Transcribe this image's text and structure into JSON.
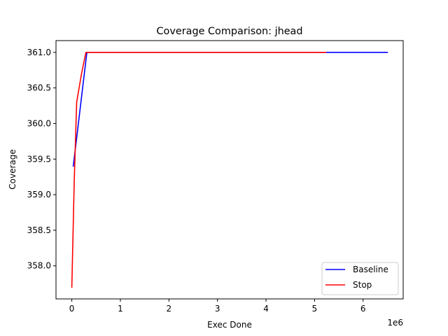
{
  "chart_data": {
    "type": "line",
    "title": "Coverage Comparison: jhead",
    "xlabel": "Exec Done",
    "ylabel": "Coverage",
    "x_offset_label": "1e6",
    "xlim": [
      -0.326,
      6.826
    ],
    "ylim": [
      357.535,
      361.165
    ],
    "x_ticks": [
      0,
      1,
      2,
      3,
      4,
      5,
      6
    ],
    "x_tick_labels": [
      "0",
      "1",
      "2",
      "3",
      "4",
      "5",
      "6"
    ],
    "y_ticks": [
      358.0,
      358.5,
      359.0,
      359.5,
      360.0,
      360.5,
      361.0
    ],
    "y_tick_labels": [
      "358.0",
      "358.5",
      "359.0",
      "359.5",
      "360.0",
      "360.5",
      "361.0"
    ],
    "grid": false,
    "legend_position": "lower-right",
    "series": [
      {
        "name": "Baseline",
        "color": "#0000ff",
        "x": [
          0.03,
          0.31,
          1.0,
          2.0,
          3.0,
          4.0,
          5.0,
          6.0,
          6.5
        ],
        "y": [
          359.4,
          361.0,
          361.0,
          361.0,
          361.0,
          361.0,
          361.0,
          361.0,
          361.0
        ]
      },
      {
        "name": "Stop",
        "color": "#ff0000",
        "x": [
          0.0,
          0.05,
          0.1,
          0.2,
          0.29,
          1.0,
          2.0,
          3.0,
          4.0,
          5.0,
          5.23
        ],
        "y": [
          357.7,
          359.2,
          360.3,
          360.7,
          361.0,
          361.0,
          361.0,
          361.0,
          361.0,
          361.0,
          361.0
        ]
      }
    ]
  }
}
